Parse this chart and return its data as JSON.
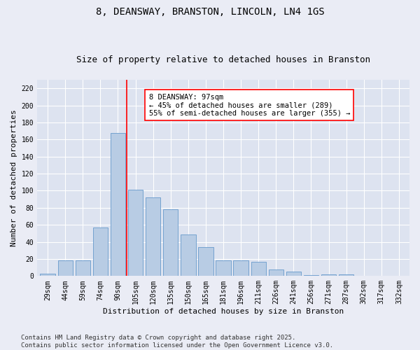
{
  "title1": "8, DEANSWAY, BRANSTON, LINCOLN, LN4 1GS",
  "title2": "Size of property relative to detached houses in Branston",
  "xlabel": "Distribution of detached houses by size in Branston",
  "ylabel": "Number of detached properties",
  "categories": [
    "29sqm",
    "44sqm",
    "59sqm",
    "74sqm",
    "90sqm",
    "105sqm",
    "120sqm",
    "135sqm",
    "150sqm",
    "165sqm",
    "181sqm",
    "196sqm",
    "211sqm",
    "226sqm",
    "241sqm",
    "256sqm",
    "271sqm",
    "287sqm",
    "302sqm",
    "317sqm",
    "332sqm"
  ],
  "values": [
    3,
    18,
    18,
    57,
    168,
    101,
    92,
    78,
    49,
    34,
    18,
    18,
    17,
    8,
    5,
    1,
    2,
    2,
    0,
    0,
    0
  ],
  "bar_color": "#b8cce4",
  "bar_edge_color": "#6699cc",
  "vline_x_index": 4.5,
  "vline_color": "red",
  "annotation_text": "8 DEANSWAY: 97sqm\n← 45% of detached houses are smaller (289)\n55% of semi-detached houses are larger (355) →",
  "annotation_box_color": "white",
  "annotation_box_edge_color": "red",
  "ylim": [
    0,
    230
  ],
  "yticks": [
    0,
    20,
    40,
    60,
    80,
    100,
    120,
    140,
    160,
    180,
    200,
    220
  ],
  "background_color": "#dde3f0",
  "grid_color": "white",
  "fig_bg_color": "#eaecf5",
  "footer": "Contains HM Land Registry data © Crown copyright and database right 2025.\nContains public sector information licensed under the Open Government Licence v3.0.",
  "title1_fontsize": 10,
  "title2_fontsize": 9,
  "xlabel_fontsize": 8,
  "ylabel_fontsize": 8,
  "tick_fontsize": 7,
  "annotation_fontsize": 7.5,
  "footer_fontsize": 6.5
}
